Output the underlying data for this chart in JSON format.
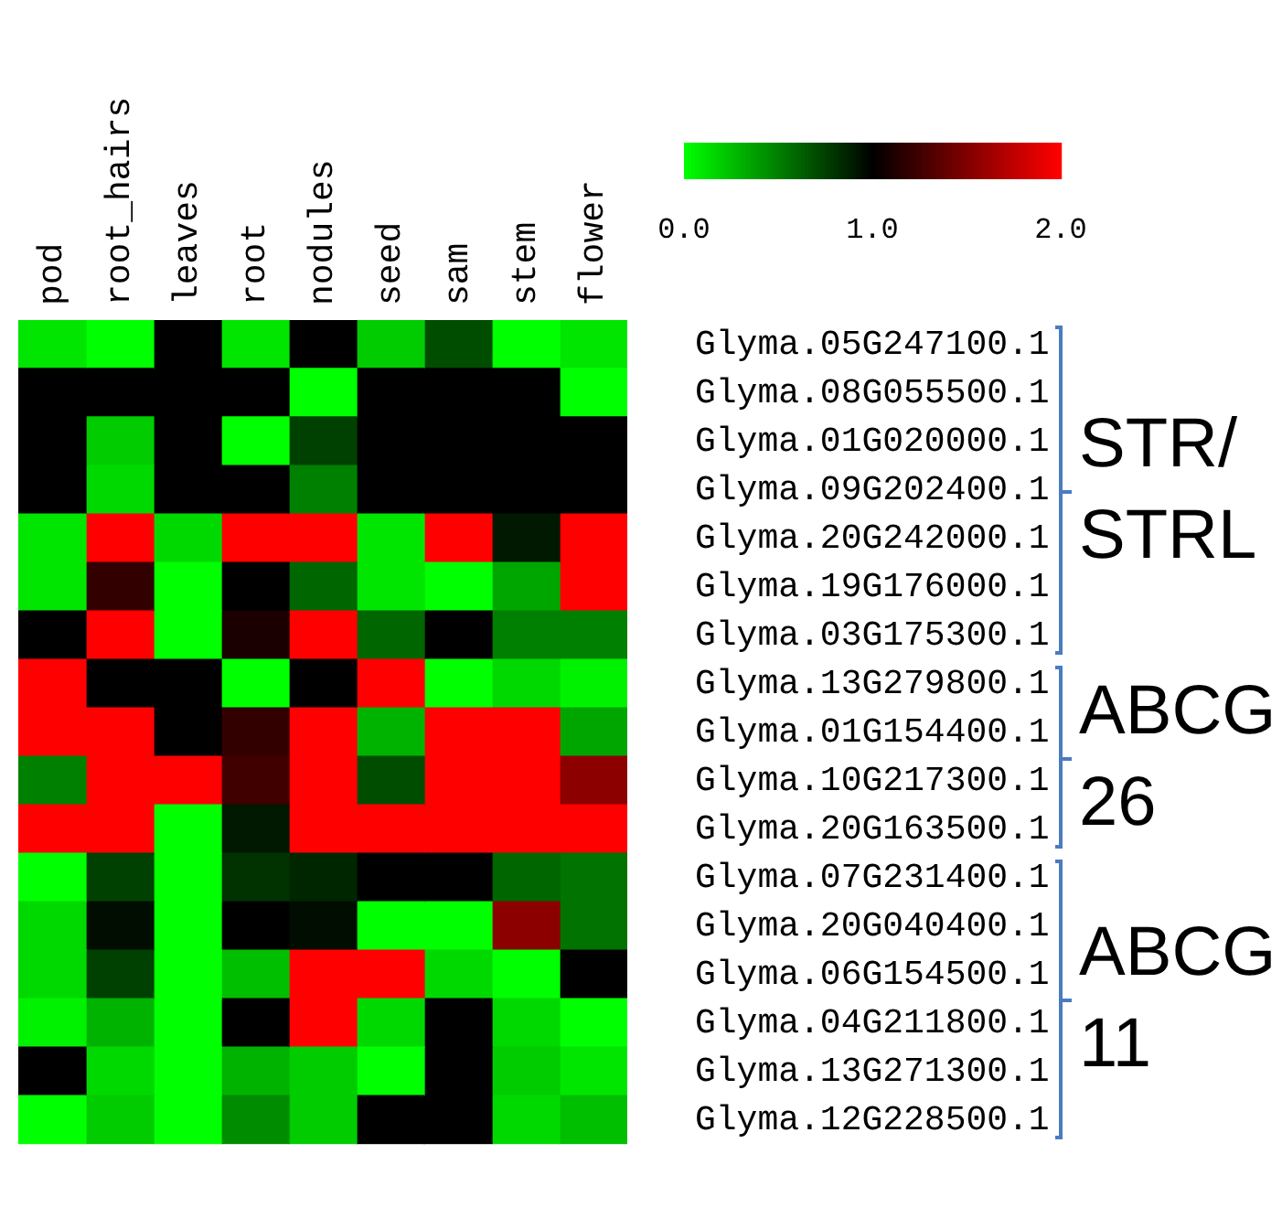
{
  "chart_data": {
    "type": "heatmap",
    "categories": [
      "pod",
      "root_hairs",
      "leaves",
      "root",
      "nodules",
      "seed",
      "sam",
      "stem",
      "flower"
    ],
    "y_categories": [
      "Glyma.05G247100.1",
      "Glyma.08G055500.1",
      "Glyma.01G020000.1",
      "Glyma.09G202400.1",
      "Glyma.20G242000.1",
      "Glyma.19G176000.1",
      "Glyma.03G175300.1",
      "Glyma.13G279800.1",
      "Glyma.01G154400.1",
      "Glyma.10G217300.1",
      "Glyma.20G163500.1",
      "Glyma.07G231400.1",
      "Glyma.20G040400.1",
      "Glyma.06G154500.1",
      "Glyma.04G211800.1",
      "Glyma.13G271300.1",
      "Glyma.12G228500.1"
    ],
    "cells": [
      [
        0.1,
        0,
        1,
        0.1,
        1,
        0.2,
        0.7,
        0,
        0.1
      ],
      [
        1,
        1,
        1,
        1,
        0,
        1,
        1,
        1,
        0
      ],
      [
        1,
        0.2,
        1,
        0,
        0.75,
        1,
        1,
        1,
        1
      ],
      [
        1,
        0.15,
        1,
        1,
        0.5,
        1,
        1,
        1,
        1
      ],
      [
        0.1,
        2,
        0.15,
        2,
        2,
        0.1,
        2,
        0.9,
        2
      ],
      [
        0.1,
        1.2,
        0,
        1,
        0.6,
        0.1,
        0,
        0.35,
        2
      ],
      [
        1,
        2,
        0,
        1.1,
        2,
        0.6,
        1,
        0.5,
        0.5
      ],
      [
        2,
        1,
        1,
        0,
        1,
        2,
        0,
        0.15,
        0.05
      ],
      [
        2,
        2,
        1,
        1.2,
        2,
        0.3,
        2,
        2,
        0.35
      ],
      [
        0.5,
        2,
        2,
        1.25,
        2,
        0.7,
        2,
        2,
        1.55
      ],
      [
        2,
        2,
        0,
        0.9,
        2,
        2,
        2,
        2,
        2
      ],
      [
        0,
        0.75,
        0,
        0.8,
        0.85,
        1,
        1,
        0.6,
        0.55
      ],
      [
        0.15,
        0.95,
        0,
        1,
        0.95,
        0,
        0,
        1.55,
        0.55
      ],
      [
        0.15,
        0.75,
        0,
        0.25,
        2,
        2,
        0.15,
        0,
        1
      ],
      [
        0.05,
        0.3,
        0,
        1,
        2,
        0.15,
        1,
        0.15,
        0
      ],
      [
        1,
        0.15,
        0,
        0.3,
        0.2,
        0,
        1,
        0.2,
        0.1
      ],
      [
        0,
        0.2,
        0,
        0.45,
        0.2,
        1,
        1,
        0.15,
        0.25
      ]
    ],
    "clim": [
      0,
      2
    ],
    "cticks": [
      {
        "value": 0,
        "label": "0.0"
      },
      {
        "value": 1,
        "label": "1.0"
      },
      {
        "value": 2,
        "label": "2.0"
      }
    ],
    "annotations": [
      "STR/STRL",
      "ABCG 26",
      "ABCG 11"
    ]
  }
}
